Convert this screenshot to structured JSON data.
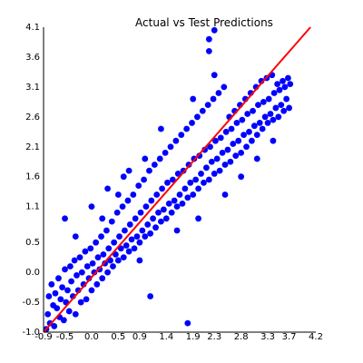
{
  "chart_data": {
    "type": "scatter",
    "title": "Actual vs Test Predictions",
    "xlabel": "",
    "ylabel": "",
    "xlim": [
      -0.9,
      4.2
    ],
    "ylim": [
      -1.0,
      4.1
    ],
    "x_ticks": [
      "-0.9",
      "-0.5",
      "0.0",
      "0.5",
      "0.9",
      "1.4",
      "1.9",
      "2.3",
      "2.8",
      "3.3",
      "3.7",
      "4.2"
    ],
    "x_tick_values": [
      -0.9,
      -0.5,
      0.0,
      0.5,
      0.9,
      1.4,
      1.9,
      2.3,
      2.8,
      3.3,
      3.7,
      4.2
    ],
    "y_ticks": [
      "-1.0",
      "-0.5",
      "0.0",
      "0.5",
      "1.1",
      "1.6",
      "2.1",
      "2.6",
      "3.1",
      "3.6",
      "4.1"
    ],
    "y_tick_values": [
      -1.0,
      -0.5,
      0.0,
      0.5,
      1.1,
      1.6,
      2.1,
      2.6,
      3.1,
      3.6,
      4.1
    ],
    "grid": false,
    "point_color": "#0000ff",
    "reference_line": {
      "from": [
        -0.9,
        -1.0
      ],
      "to": [
        4.1,
        4.1
      ],
      "color": "#ff0000"
    },
    "points": [
      [
        -0.85,
        -0.95
      ],
      [
        -0.82,
        -0.7
      ],
      [
        -0.8,
        -0.4
      ],
      [
        -0.78,
        -0.85
      ],
      [
        -0.75,
        -0.2
      ],
      [
        -0.72,
        -0.55
      ],
      [
        -0.7,
        -0.9
      ],
      [
        -0.68,
        -0.35
      ],
      [
        -0.65,
        -0.6
      ],
      [
        -0.62,
        -0.1
      ],
      [
        -0.6,
        -0.75
      ],
      [
        -0.58,
        -0.45
      ],
      [
        -0.55,
        -0.25
      ],
      [
        -0.52,
        -0.8
      ],
      [
        -0.5,
        0.05
      ],
      [
        -0.48,
        -0.5
      ],
      [
        -0.45,
        -0.3
      ],
      [
        -0.42,
        -0.65
      ],
      [
        -0.4,
        0.1
      ],
      [
        -0.38,
        -0.15
      ],
      [
        -0.35,
        -0.4
      ],
      [
        -0.32,
        0.2
      ],
      [
        -0.3,
        -0.7
      ],
      [
        -0.28,
        -0.05
      ],
      [
        -0.25,
        -0.3
      ],
      [
        -0.22,
        0.25
      ],
      [
        -0.2,
        -0.5
      ],
      [
        -0.18,
        0.0
      ],
      [
        -0.15,
        -0.2
      ],
      [
        -0.12,
        0.35
      ],
      [
        -0.1,
        -0.45
      ],
      [
        -0.08,
        0.1
      ],
      [
        -0.05,
        -0.1
      ],
      [
        -0.02,
        0.4
      ],
      [
        0.0,
        -0.3
      ],
      [
        0.02,
        0.15
      ],
      [
        0.05,
        0.0
      ],
      [
        0.08,
        0.5
      ],
      [
        0.1,
        -0.2
      ],
      [
        0.12,
        0.25
      ],
      [
        0.15,
        0.05
      ],
      [
        0.18,
        0.6
      ],
      [
        0.2,
        -0.1
      ],
      [
        0.22,
        0.3
      ],
      [
        0.25,
        0.15
      ],
      [
        0.28,
        0.7
      ],
      [
        0.3,
        0.0
      ],
      [
        0.32,
        0.4
      ],
      [
        0.35,
        0.2
      ],
      [
        0.38,
        0.85
      ],
      [
        0.4,
        0.1
      ],
      [
        0.42,
        0.5
      ],
      [
        0.45,
        0.3
      ],
      [
        0.48,
        1.0
      ],
      [
        0.5,
        0.2
      ],
      [
        0.52,
        0.6
      ],
      [
        0.55,
        0.4
      ],
      [
        0.58,
        1.1
      ],
      [
        0.6,
        0.25
      ],
      [
        0.62,
        0.7
      ],
      [
        0.65,
        0.45
      ],
      [
        0.68,
        1.2
      ],
      [
        0.7,
        0.35
      ],
      [
        0.72,
        0.8
      ],
      [
        0.75,
        0.55
      ],
      [
        0.78,
        1.3
      ],
      [
        0.8,
        0.4
      ],
      [
        0.82,
        0.9
      ],
      [
        0.85,
        0.6
      ],
      [
        0.88,
        1.45
      ],
      [
        0.9,
        0.5
      ],
      [
        0.92,
        1.0
      ],
      [
        0.95,
        0.7
      ],
      [
        0.98,
        1.55
      ],
      [
        1.0,
        0.6
      ],
      [
        1.02,
        1.1
      ],
      [
        1.05,
        0.8
      ],
      [
        1.08,
        1.7
      ],
      [
        1.1,
        0.65
      ],
      [
        1.12,
        1.2
      ],
      [
        1.15,
        0.9
      ],
      [
        1.18,
        1.8
      ],
      [
        1.2,
        0.75
      ],
      [
        1.22,
        1.3
      ],
      [
        1.25,
        1.0
      ],
      [
        1.28,
        1.9
      ],
      [
        1.3,
        0.85
      ],
      [
        1.32,
        1.4
      ],
      [
        1.35,
        1.05
      ],
      [
        1.38,
        2.0
      ],
      [
        1.4,
        0.9
      ],
      [
        1.42,
        1.5
      ],
      [
        1.45,
        1.15
      ],
      [
        1.48,
        2.1
      ],
      [
        1.5,
        1.0
      ],
      [
        1.52,
        1.55
      ],
      [
        1.55,
        1.2
      ],
      [
        1.58,
        2.2
      ],
      [
        1.6,
        1.1
      ],
      [
        1.62,
        1.65
      ],
      [
        1.65,
        1.3
      ],
      [
        1.68,
        2.3
      ],
      [
        1.7,
        1.15
      ],
      [
        1.72,
        1.7
      ],
      [
        1.75,
        1.4
      ],
      [
        1.78,
        2.4
      ],
      [
        1.8,
        1.25
      ],
      [
        1.82,
        1.8
      ],
      [
        1.85,
        1.5
      ],
      [
        1.88,
        2.5
      ],
      [
        1.9,
        1.3
      ],
      [
        1.92,
        1.9
      ],
      [
        1.95,
        1.55
      ],
      [
        1.98,
        2.6
      ],
      [
        2.0,
        1.4
      ],
      [
        2.02,
        1.95
      ],
      [
        2.05,
        1.65
      ],
      [
        2.08,
        2.7
      ],
      [
        2.1,
        1.5
      ],
      [
        2.12,
        2.05
      ],
      [
        2.15,
        1.75
      ],
      [
        2.18,
        2.8
      ],
      [
        2.2,
        1.55
      ],
      [
        2.22,
        2.1
      ],
      [
        2.25,
        1.85
      ],
      [
        2.28,
        2.9
      ],
      [
        2.3,
        1.65
      ],
      [
        2.32,
        2.2
      ],
      [
        2.35,
        1.9
      ],
      [
        2.38,
        3.0
      ],
      [
        2.4,
        1.7
      ],
      [
        2.42,
        2.25
      ],
      [
        2.45,
        2.0
      ],
      [
        2.48,
        3.1
      ],
      [
        2.5,
        1.8
      ],
      [
        2.52,
        2.35
      ],
      [
        2.55,
        2.05
      ],
      [
        2.58,
        2.6
      ],
      [
        2.6,
        1.85
      ],
      [
        2.62,
        2.4
      ],
      [
        2.65,
        2.15
      ],
      [
        2.68,
        2.7
      ],
      [
        2.7,
        1.95
      ],
      [
        2.72,
        2.5
      ],
      [
        2.75,
        2.2
      ],
      [
        2.78,
        2.8
      ],
      [
        2.8,
        2.0
      ],
      [
        2.82,
        2.55
      ],
      [
        2.85,
        2.3
      ],
      [
        2.88,
        2.9
      ],
      [
        2.9,
        2.1
      ],
      [
        2.92,
        2.65
      ],
      [
        2.95,
        2.35
      ],
      [
        2.98,
        3.0
      ],
      [
        3.0,
        2.2
      ],
      [
        3.02,
        2.7
      ],
      [
        3.05,
        2.45
      ],
      [
        3.08,
        3.1
      ],
      [
        3.1,
        2.3
      ],
      [
        3.12,
        2.8
      ],
      [
        3.15,
        2.5
      ],
      [
        3.18,
        3.2
      ],
      [
        3.2,
        2.4
      ],
      [
        3.22,
        2.85
      ],
      [
        3.25,
        2.6
      ],
      [
        3.28,
        3.25
      ],
      [
        3.3,
        2.5
      ],
      [
        3.32,
        2.9
      ],
      [
        3.35,
        2.65
      ],
      [
        3.38,
        3.3
      ],
      [
        3.4,
        2.55
      ],
      [
        3.42,
        3.0
      ],
      [
        3.45,
        2.75
      ],
      [
        3.48,
        3.15
      ],
      [
        3.5,
        2.6
      ],
      [
        3.52,
        3.05
      ],
      [
        3.55,
        2.8
      ],
      [
        3.58,
        3.2
      ],
      [
        3.6,
        2.7
      ],
      [
        3.62,
        3.1
      ],
      [
        3.65,
        2.9
      ],
      [
        3.68,
        3.25
      ],
      [
        3.7,
        2.75
      ],
      [
        3.72,
        3.15
      ],
      [
        0.2,
        0.9
      ],
      [
        0.5,
        1.3
      ],
      [
        1.0,
        1.9
      ],
      [
        1.3,
        2.4
      ],
      [
        0.6,
        1.6
      ],
      [
        0.9,
        0.2
      ],
      [
        1.6,
        0.7
      ],
      [
        2.0,
        0.9
      ],
      [
        2.5,
        1.3
      ],
      [
        2.8,
        1.6
      ],
      [
        3.1,
        1.9
      ],
      [
        3.4,
        2.2
      ],
      [
        1.9,
        2.9
      ],
      [
        2.3,
        3.3
      ],
      [
        2.2,
        3.9
      ],
      [
        2.3,
        4.05
      ],
      [
        2.2,
        3.7
      ],
      [
        1.1,
        -0.4
      ],
      [
        1.8,
        -0.85
      ],
      [
        -0.5,
        0.9
      ],
      [
        0.0,
        1.1
      ],
      [
        0.3,
        1.4
      ],
      [
        -0.3,
        0.6
      ],
      [
        0.7,
        1.7
      ]
    ]
  }
}
